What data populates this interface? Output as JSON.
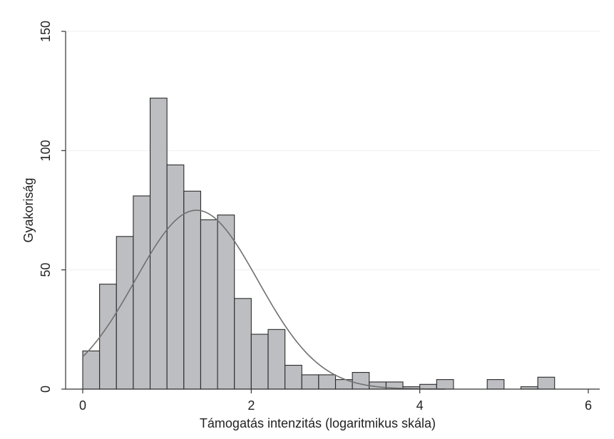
{
  "chart_data": {
    "type": "bar",
    "subtype": "histogram",
    "title": "",
    "xlabel": "Támogatás intenzitás (logaritmikus skála)",
    "ylabel": "Gyakoriság",
    "xlim": [
      0,
      6
    ],
    "ylim": [
      0,
      150
    ],
    "xticks": [
      0,
      2,
      4,
      6
    ],
    "xtick_labels": [
      "0",
      "2",
      "4",
      "6"
    ],
    "yticks": [
      0,
      50,
      100,
      150
    ],
    "ytick_labels": [
      "0",
      "50",
      "100",
      "150"
    ],
    "grid": "horizontal",
    "legend": "none",
    "colors": {
      "bar_fill": "#bdbec2",
      "bar_stroke": "#2a2a2a",
      "curve": "#707070",
      "grid": "#efefef",
      "axis": "#333333",
      "text": "#222222"
    },
    "bin_width": 0.2,
    "bins": [
      {
        "x0": 0.0,
        "x1": 0.2,
        "count": 16
      },
      {
        "x0": 0.2,
        "x1": 0.4,
        "count": 44
      },
      {
        "x0": 0.4,
        "x1": 0.6,
        "count": 64
      },
      {
        "x0": 0.6,
        "x1": 0.8,
        "count": 81
      },
      {
        "x0": 0.8,
        "x1": 1.0,
        "count": 122
      },
      {
        "x0": 1.0,
        "x1": 1.2,
        "count": 94
      },
      {
        "x0": 1.2,
        "x1": 1.4,
        "count": 83
      },
      {
        "x0": 1.4,
        "x1": 1.6,
        "count": 71
      },
      {
        "x0": 1.6,
        "x1": 1.8,
        "count": 73
      },
      {
        "x0": 1.8,
        "x1": 2.0,
        "count": 38
      },
      {
        "x0": 2.0,
        "x1": 2.2,
        "count": 23
      },
      {
        "x0": 2.2,
        "x1": 2.4,
        "count": 25
      },
      {
        "x0": 2.4,
        "x1": 2.6,
        "count": 10
      },
      {
        "x0": 2.6,
        "x1": 2.8,
        "count": 6
      },
      {
        "x0": 2.8,
        "x1": 3.0,
        "count": 6
      },
      {
        "x0": 3.0,
        "x1": 3.2,
        "count": 4
      },
      {
        "x0": 3.2,
        "x1": 3.4,
        "count": 7
      },
      {
        "x0": 3.4,
        "x1": 3.6,
        "count": 3
      },
      {
        "x0": 3.6,
        "x1": 3.8,
        "count": 3
      },
      {
        "x0": 3.8,
        "x1": 4.0,
        "count": 1
      },
      {
        "x0": 4.0,
        "x1": 4.2,
        "count": 2
      },
      {
        "x0": 4.2,
        "x1": 4.4,
        "count": 4
      },
      {
        "x0": 4.8,
        "x1": 5.0,
        "count": 4
      },
      {
        "x0": 5.2,
        "x1": 5.4,
        "count": 1
      },
      {
        "x0": 5.4,
        "x1": 5.6,
        "count": 5
      }
    ],
    "normal_curve": {
      "type": "line",
      "mean": 1.35,
      "sd": 0.73,
      "peak": 75,
      "x_range": [
        0.0,
        4.3
      ]
    }
  }
}
